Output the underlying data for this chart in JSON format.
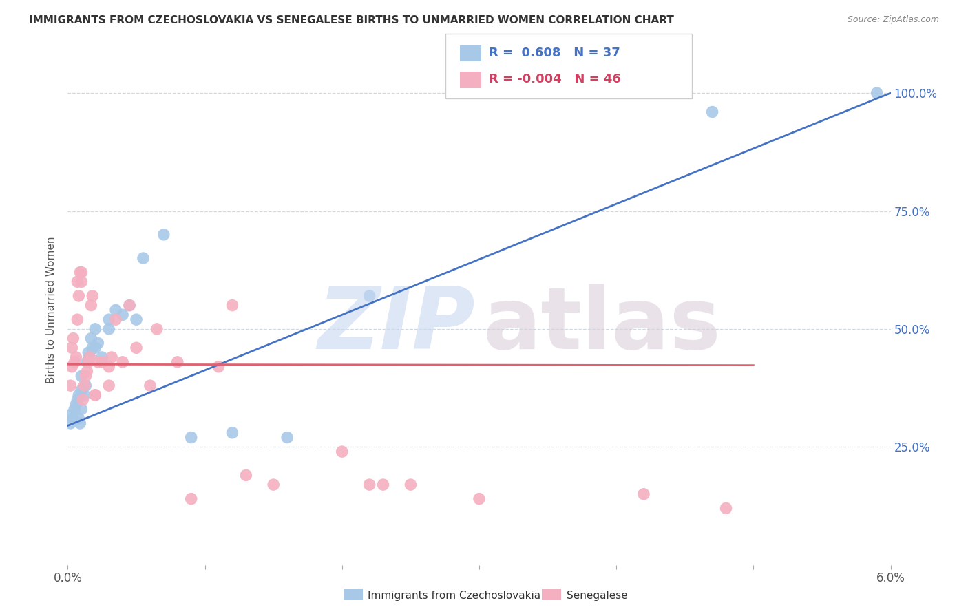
{
  "title": "IMMIGRANTS FROM CZECHOSLOVAKIA VS SENEGALESE BIRTHS TO UNMARRIED WOMEN CORRELATION CHART",
  "source": "Source: ZipAtlas.com",
  "ylabel": "Births to Unmarried Women",
  "yticks": [
    "25.0%",
    "50.0%",
    "75.0%",
    "100.0%"
  ],
  "ytick_vals": [
    0.25,
    0.5,
    0.75,
    1.0
  ],
  "legend_label1": "Immigrants from Czechoslovakia",
  "legend_label2": "Senegalese",
  "legend_R1": "0.608",
  "legend_N1": "37",
  "legend_R2": "-0.004",
  "legend_N2": "46",
  "color_blue": "#a8c8e8",
  "color_pink": "#f4b0c0",
  "color_blue_text": "#4472c4",
  "color_pink_text": "#d04060",
  "color_line_blue": "#4472c4",
  "color_line_pink": "#e06070",
  "blue_line_x0": 0.0,
  "blue_line_y0": 0.295,
  "blue_line_x1": 0.06,
  "blue_line_y1": 1.0,
  "pink_line_x0": 0.0,
  "pink_line_y0": 0.425,
  "pink_line_x1": 0.05,
  "pink_line_y1": 0.423,
  "blue_points_x": [
    0.0002,
    0.0003,
    0.0004,
    0.0005,
    0.0006,
    0.0007,
    0.0008,
    0.0008,
    0.0009,
    0.001,
    0.001,
    0.001,
    0.0012,
    0.0013,
    0.0014,
    0.0015,
    0.0016,
    0.0017,
    0.0018,
    0.002,
    0.002,
    0.0022,
    0.0025,
    0.003,
    0.003,
    0.0035,
    0.004,
    0.0045,
    0.005,
    0.0055,
    0.007,
    0.009,
    0.012,
    0.016,
    0.022,
    0.047,
    0.059
  ],
  "blue_points_y": [
    0.3,
    0.32,
    0.31,
    0.33,
    0.34,
    0.35,
    0.36,
    0.31,
    0.3,
    0.33,
    0.37,
    0.4,
    0.36,
    0.38,
    0.43,
    0.45,
    0.44,
    0.48,
    0.46,
    0.46,
    0.5,
    0.47,
    0.44,
    0.5,
    0.52,
    0.54,
    0.53,
    0.55,
    0.52,
    0.65,
    0.7,
    0.27,
    0.28,
    0.27,
    0.57,
    0.96,
    1.0
  ],
  "pink_points_x": [
    0.0002,
    0.0003,
    0.0003,
    0.0004,
    0.0005,
    0.0006,
    0.0007,
    0.0007,
    0.0008,
    0.0009,
    0.001,
    0.001,
    0.0011,
    0.0012,
    0.0013,
    0.0014,
    0.0015,
    0.0016,
    0.0017,
    0.0018,
    0.002,
    0.002,
    0.0022,
    0.0025,
    0.003,
    0.003,
    0.0032,
    0.0035,
    0.004,
    0.0045,
    0.005,
    0.006,
    0.0065,
    0.008,
    0.009,
    0.011,
    0.012,
    0.013,
    0.015,
    0.02,
    0.022,
    0.023,
    0.025,
    0.03,
    0.042,
    0.048
  ],
  "pink_points_y": [
    0.38,
    0.42,
    0.46,
    0.48,
    0.43,
    0.44,
    0.52,
    0.6,
    0.57,
    0.62,
    0.6,
    0.62,
    0.35,
    0.38,
    0.4,
    0.41,
    0.43,
    0.44,
    0.55,
    0.57,
    0.36,
    0.36,
    0.43,
    0.43,
    0.38,
    0.42,
    0.44,
    0.52,
    0.43,
    0.55,
    0.46,
    0.38,
    0.5,
    0.43,
    0.14,
    0.42,
    0.55,
    0.19,
    0.17,
    0.24,
    0.17,
    0.17,
    0.17,
    0.14,
    0.15,
    0.12
  ],
  "xmin": 0.0,
  "xmax": 0.06,
  "ymin": 0.0,
  "ymax": 1.08
}
